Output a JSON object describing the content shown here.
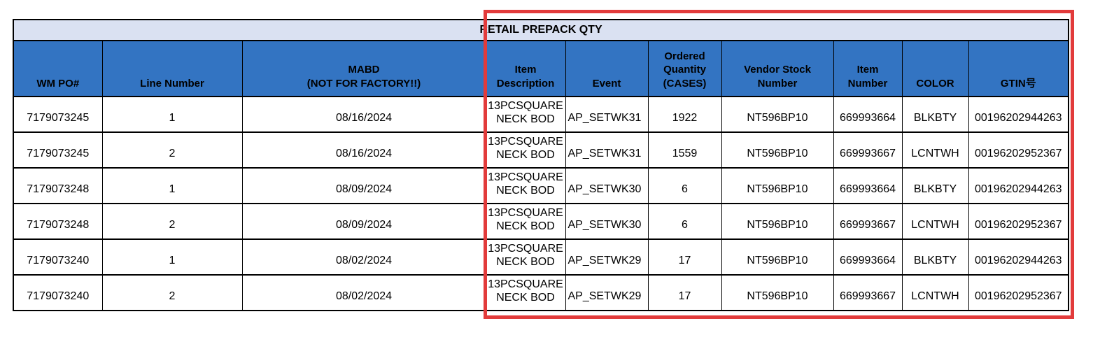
{
  "colors": {
    "header_bg": "#3374c2",
    "title_bg": "#dae1f2",
    "highlight_box": "#e23b3b",
    "border": "#000000",
    "text": "#000000"
  },
  "table": {
    "title": "RETAIL PREPACK QTY",
    "columns": [
      {
        "key": "wm-po",
        "label": "WM PO#"
      },
      {
        "key": "line-number",
        "label": "Line Number"
      },
      {
        "key": "mabd",
        "label": "MABD\n(NOT FOR FACTORY!!)"
      },
      {
        "key": "item-description",
        "label": "Item\nDescription"
      },
      {
        "key": "event",
        "label": "Event"
      },
      {
        "key": "ordered-quantity-cases",
        "label": "Ordered\nQuantity\n(CASES)"
      },
      {
        "key": "vendor-stock-number",
        "label": "Vendor Stock\nNumber"
      },
      {
        "key": "item-number",
        "label": "Item\nNumber"
      },
      {
        "key": "color",
        "label": "COLOR"
      },
      {
        "key": "gtin",
        "label": "GTIN号"
      }
    ],
    "rows": [
      [
        "7179073245",
        "1",
        "08/16/2024",
        "13PCSQUARE NECK BOD",
        "AP_SETWK31",
        "1922",
        "NT596BP10",
        "669993664",
        "BLKBTY",
        "00196202944263"
      ],
      [
        "7179073245",
        "2",
        "08/16/2024",
        "13PCSQUARE NECK BOD",
        "AP_SETWK31",
        "1559",
        "NT596BP10",
        "669993667",
        "LCNTWH",
        "00196202952367"
      ],
      [
        "7179073248",
        "1",
        "08/09/2024",
        "13PCSQUARE NECK BOD",
        "AP_SETWK30",
        "6",
        "NT596BP10",
        "669993664",
        "BLKBTY",
        "00196202944263"
      ],
      [
        "7179073248",
        "2",
        "08/09/2024",
        "13PCSQUARE NECK BOD",
        "AP_SETWK30",
        "6",
        "NT596BP10",
        "669993667",
        "LCNTWH",
        "00196202952367"
      ],
      [
        "7179073240",
        "1",
        "08/02/2024",
        "13PCSQUARE NECK BOD",
        "AP_SETWK29",
        "17",
        "NT596BP10",
        "669993664",
        "BLKBTY",
        "00196202944263"
      ],
      [
        "7179073240",
        "2",
        "08/02/2024",
        "13PCSQUARE NECK BOD",
        "AP_SETWK29",
        "17",
        "NT596BP10",
        "669993667",
        "LCNTWH",
        "00196202952367"
      ]
    ]
  },
  "annotation": {
    "description": "red rectangle highlighting prepack columns",
    "color": "#e23b3b"
  }
}
